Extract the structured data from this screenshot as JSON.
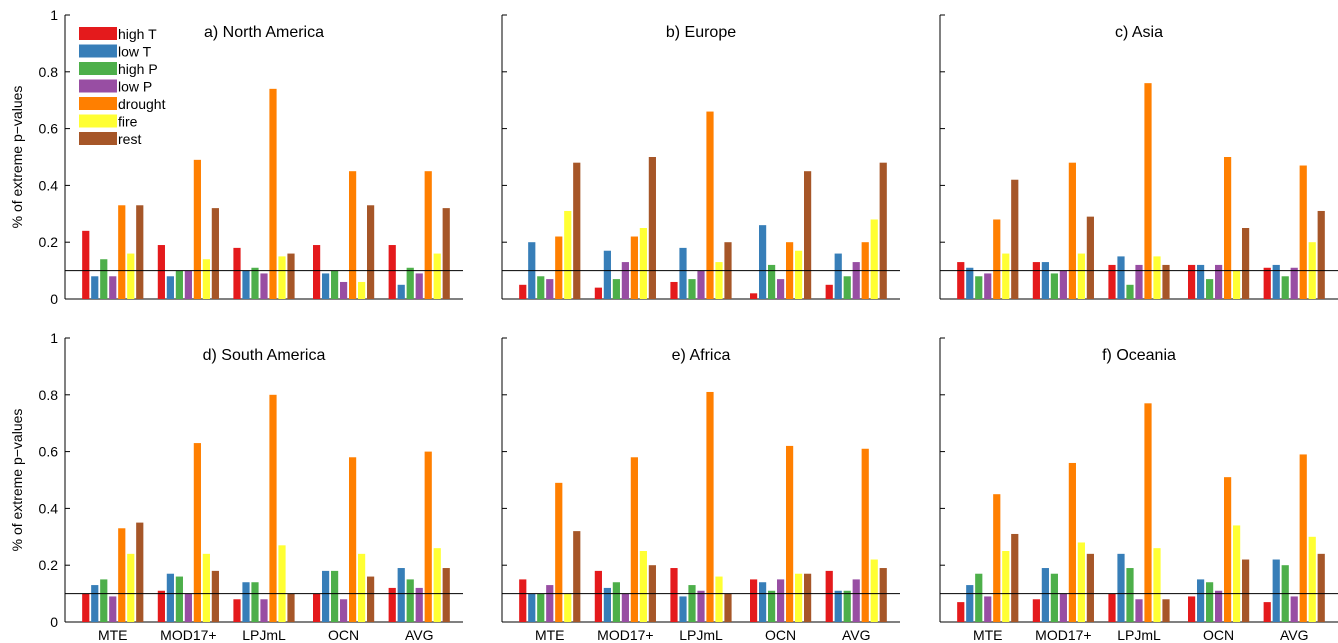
{
  "figure": {
    "ylabel": "% of extreme p−values",
    "threshold": 0.1,
    "ylim": [
      0,
      1
    ],
    "yticks": [
      "0",
      "0.2",
      "0.4",
      "0.6",
      "0.8",
      "1"
    ],
    "ytick_values": [
      0,
      0.2,
      0.4,
      0.6,
      0.8,
      1
    ],
    "legend": {
      "placement": "top-left of panel a",
      "entries": [
        {
          "name": "high T",
          "color": "#e41a1c"
        },
        {
          "name": "low T",
          "color": "#377eb8"
        },
        {
          "name": "high P",
          "color": "#4daf4a"
        },
        {
          "name": "low P",
          "color": "#984ea3"
        },
        {
          "name": "drought",
          "color": "#ff7f00"
        },
        {
          "name": "fire",
          "color": "#ffff33"
        },
        {
          "name": "rest",
          "color": "#a65628"
        }
      ]
    }
  },
  "chart_data": [
    {
      "type": "bar",
      "title": "a) North America",
      "categories": [
        "MTE",
        "MOD17+",
        "LPJmL",
        "OCN",
        "AVG"
      ],
      "ylim": [
        0,
        1
      ],
      "series": [
        {
          "name": "high T",
          "values": [
            0.24,
            0.19,
            0.18,
            0.19,
            0.19
          ]
        },
        {
          "name": "low T",
          "values": [
            0.08,
            0.08,
            0.1,
            0.09,
            0.05
          ]
        },
        {
          "name": "high P",
          "values": [
            0.14,
            0.1,
            0.11,
            0.1,
            0.11
          ]
        },
        {
          "name": "low P",
          "values": [
            0.08,
            0.1,
            0.09,
            0.06,
            0.09
          ]
        },
        {
          "name": "drought",
          "values": [
            0.33,
            0.49,
            0.74,
            0.45,
            0.45
          ]
        },
        {
          "name": "fire",
          "values": [
            0.16,
            0.14,
            0.15,
            0.06,
            0.16
          ]
        },
        {
          "name": "rest",
          "values": [
            0.33,
            0.32,
            0.16,
            0.33,
            0.32
          ]
        }
      ]
    },
    {
      "type": "bar",
      "title": "b) Europe",
      "categories": [
        "MTE",
        "MOD17+",
        "LPJmL",
        "OCN",
        "AVG"
      ],
      "ylim": [
        0,
        1
      ],
      "series": [
        {
          "name": "high T",
          "values": [
            0.05,
            0.04,
            0.06,
            0.02,
            0.05
          ]
        },
        {
          "name": "low T",
          "values": [
            0.2,
            0.17,
            0.18,
            0.26,
            0.16
          ]
        },
        {
          "name": "high P",
          "values": [
            0.08,
            0.07,
            0.07,
            0.12,
            0.08
          ]
        },
        {
          "name": "low P",
          "values": [
            0.07,
            0.13,
            0.1,
            0.07,
            0.13
          ]
        },
        {
          "name": "drought",
          "values": [
            0.22,
            0.22,
            0.66,
            0.2,
            0.2
          ]
        },
        {
          "name": "fire",
          "values": [
            0.31,
            0.25,
            0.13,
            0.17,
            0.28
          ]
        },
        {
          "name": "rest",
          "values": [
            0.48,
            0.5,
            0.2,
            0.45,
            0.48
          ]
        }
      ]
    },
    {
      "type": "bar",
      "title": "c) Asia",
      "categories": [
        "MTE",
        "MOD17+",
        "LPJmL",
        "OCN",
        "AVG"
      ],
      "ylim": [
        0,
        1
      ],
      "series": [
        {
          "name": "high T",
          "values": [
            0.13,
            0.13,
            0.12,
            0.12,
            0.11
          ]
        },
        {
          "name": "low T",
          "values": [
            0.11,
            0.13,
            0.15,
            0.12,
            0.12
          ]
        },
        {
          "name": "high P",
          "values": [
            0.08,
            0.09,
            0.05,
            0.07,
            0.08
          ]
        },
        {
          "name": "low P",
          "values": [
            0.09,
            0.1,
            0.12,
            0.12,
            0.11
          ]
        },
        {
          "name": "drought",
          "values": [
            0.28,
            0.48,
            0.76,
            0.5,
            0.47
          ]
        },
        {
          "name": "fire",
          "values": [
            0.16,
            0.16,
            0.15,
            0.1,
            0.2
          ]
        },
        {
          "name": "rest",
          "values": [
            0.42,
            0.29,
            0.12,
            0.25,
            0.31
          ]
        }
      ]
    },
    {
      "type": "bar",
      "title": "d) South America",
      "categories": [
        "MTE",
        "MOD17+",
        "LPJmL",
        "OCN",
        "AVG"
      ],
      "ylim": [
        0,
        1
      ],
      "series": [
        {
          "name": "high T",
          "values": [
            0.1,
            0.11,
            0.08,
            0.1,
            0.12
          ]
        },
        {
          "name": "low T",
          "values": [
            0.13,
            0.17,
            0.14,
            0.18,
            0.19
          ]
        },
        {
          "name": "high P",
          "values": [
            0.15,
            0.16,
            0.14,
            0.18,
            0.15
          ]
        },
        {
          "name": "low P",
          "values": [
            0.09,
            0.1,
            0.08,
            0.08,
            0.12
          ]
        },
        {
          "name": "drought",
          "values": [
            0.33,
            0.63,
            0.8,
            0.58,
            0.6
          ]
        },
        {
          "name": "fire",
          "values": [
            0.24,
            0.24,
            0.27,
            0.24,
            0.26
          ]
        },
        {
          "name": "rest",
          "values": [
            0.35,
            0.18,
            0.1,
            0.16,
            0.19
          ]
        }
      ]
    },
    {
      "type": "bar",
      "title": "e) Africa",
      "categories": [
        "MTE",
        "MOD17+",
        "LPJmL",
        "OCN",
        "AVG"
      ],
      "ylim": [
        0,
        1
      ],
      "series": [
        {
          "name": "high T",
          "values": [
            0.15,
            0.18,
            0.19,
            0.15,
            0.18
          ]
        },
        {
          "name": "low T",
          "values": [
            0.1,
            0.12,
            0.09,
            0.14,
            0.11
          ]
        },
        {
          "name": "high P",
          "values": [
            0.1,
            0.14,
            0.13,
            0.11,
            0.11
          ]
        },
        {
          "name": "low P",
          "values": [
            0.13,
            0.1,
            0.11,
            0.15,
            0.15
          ]
        },
        {
          "name": "drought",
          "values": [
            0.49,
            0.58,
            0.81,
            0.62,
            0.61
          ]
        },
        {
          "name": "fire",
          "values": [
            0.1,
            0.25,
            0.16,
            0.17,
            0.22
          ]
        },
        {
          "name": "rest",
          "values": [
            0.32,
            0.2,
            0.1,
            0.17,
            0.19
          ]
        }
      ]
    },
    {
      "type": "bar",
      "title": "f) Oceania",
      "categories": [
        "MTE",
        "MOD17+",
        "LPJmL",
        "OCN",
        "AVG"
      ],
      "ylim": [
        0,
        1
      ],
      "series": [
        {
          "name": "high T",
          "values": [
            0.07,
            0.08,
            0.1,
            0.09,
            0.07
          ]
        },
        {
          "name": "low T",
          "values": [
            0.13,
            0.19,
            0.24,
            0.15,
            0.22
          ]
        },
        {
          "name": "high P",
          "values": [
            0.17,
            0.17,
            0.19,
            0.14,
            0.2
          ]
        },
        {
          "name": "low P",
          "values": [
            0.09,
            0.1,
            0.08,
            0.11,
            0.09
          ]
        },
        {
          "name": "drought",
          "values": [
            0.45,
            0.56,
            0.77,
            0.51,
            0.59
          ]
        },
        {
          "name": "fire",
          "values": [
            0.25,
            0.28,
            0.26,
            0.34,
            0.3
          ]
        },
        {
          "name": "rest",
          "values": [
            0.31,
            0.24,
            0.08,
            0.22,
            0.24
          ]
        }
      ]
    }
  ]
}
